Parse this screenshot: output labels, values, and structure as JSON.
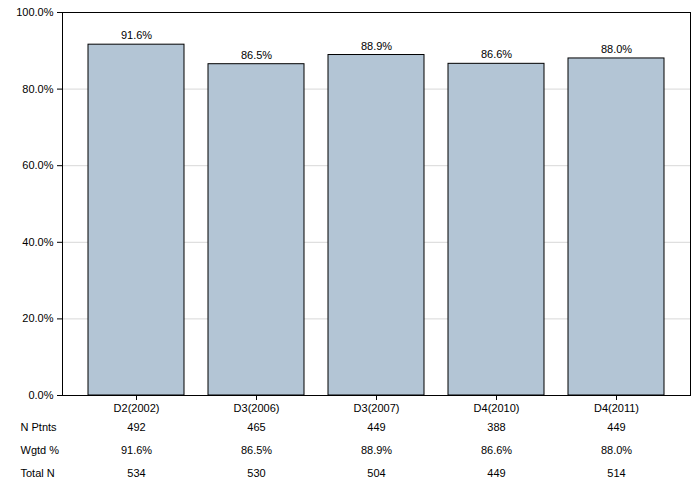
{
  "chart_data": {
    "type": "bar",
    "categories": [
      "D2(2002)",
      "D3(2006)",
      "D3(2007)",
      "D4(2010)",
      "D4(2011)"
    ],
    "values": [
      91.6,
      86.5,
      88.9,
      86.6,
      88.0
    ],
    "value_labels": [
      "91.6%",
      "86.5%",
      "88.9%",
      "86.6%",
      "88.0%"
    ],
    "data_labels": true,
    "color": "#b3c5d5",
    "ylim": [
      0,
      100
    ],
    "yticks": [
      {
        "value": 0,
        "label": "0.0%"
      },
      {
        "value": 20,
        "label": "20.0%"
      },
      {
        "value": 40,
        "label": "40.0%"
      },
      {
        "value": 60,
        "label": "60.0%"
      },
      {
        "value": 80,
        "label": "80.0%"
      },
      {
        "value": 100,
        "label": "100.0%"
      }
    ],
    "grid": true,
    "table": {
      "rows": [
        {
          "label": "N Ptnts",
          "values": [
            492,
            465,
            449,
            388,
            449
          ]
        },
        {
          "label": "Wgtd %",
          "values": [
            91.6,
            86.5,
            88.9,
            86.6,
            88.0
          ],
          "value_labels": [
            "91.6%",
            "86.5%",
            "88.9%",
            "86.6%",
            "88.0%"
          ]
        },
        {
          "label": "Total N",
          "values": [
            534,
            530,
            504,
            449,
            514
          ]
        }
      ]
    }
  }
}
